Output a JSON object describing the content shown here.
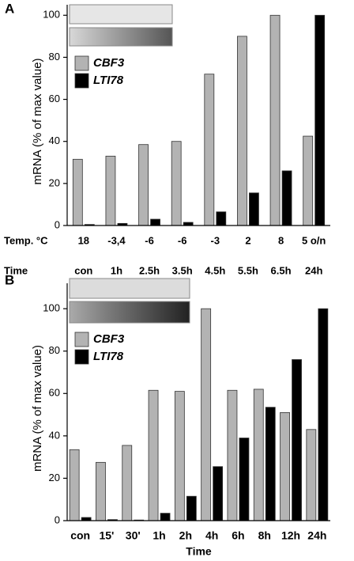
{
  "chart_data": [
    {
      "type": "bar",
      "panel": "A",
      "ylabel": "mRNA (% of max value)",
      "categories": [
        "con",
        "1h",
        "2.5h",
        "3.5h",
        "4.5h",
        "5.5h",
        "6.5h",
        "24h"
      ],
      "xlabel": "Time",
      "temp_label": "Temp. °C",
      "temperatures": [
        "18",
        "-3,4",
        "-6",
        "-6",
        "-3",
        "2",
        "8",
        "5 o/n"
      ],
      "series": [
        {
          "name": "CBF3",
          "color": "#b3b3b3",
          "values": [
            31.5,
            33,
            38.5,
            40,
            72,
            90,
            100,
            42.5
          ]
        },
        {
          "name": "LTI78",
          "color": "#000000",
          "values": [
            0.5,
            1,
            3,
            1.5,
            6.5,
            15.5,
            26,
            100
          ]
        }
      ],
      "ylim": [
        0,
        105
      ],
      "yticks": [
        0,
        20,
        40,
        60,
        80,
        100
      ],
      "legend": "upper left"
    },
    {
      "type": "bar",
      "panel": "B",
      "ylabel": "mRNA (% of max value)",
      "categories": [
        "con",
        "15'",
        "30'",
        "1h",
        "2h",
        "4h",
        "6h",
        "8h",
        "12h",
        "24h"
      ],
      "xlabel": "Time",
      "series": [
        {
          "name": "CBF3",
          "color": "#b3b3b3",
          "values": [
            33.5,
            27.5,
            35.5,
            61.5,
            61,
            100,
            61.5,
            62,
            51,
            43
          ]
        },
        {
          "name": "LTI78",
          "color": "#000000",
          "values": [
            1.5,
            0.5,
            0.3,
            3.5,
            11.5,
            25.5,
            39,
            53.5,
            76,
            100
          ]
        }
      ],
      "ylim": [
        0,
        112
      ],
      "yticks": [
        0,
        20,
        40,
        60,
        80,
        100
      ],
      "legend": "upper left"
    }
  ]
}
